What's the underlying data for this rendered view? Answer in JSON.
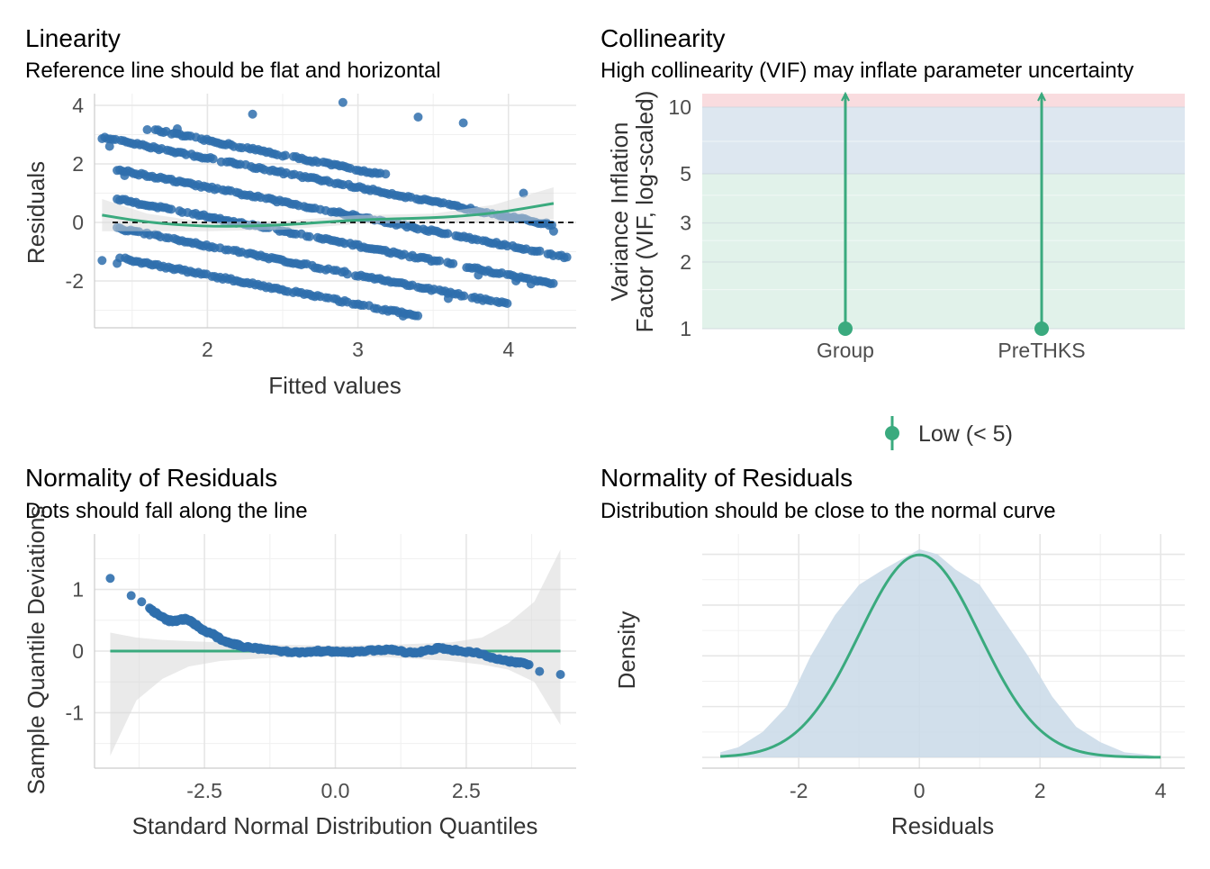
{
  "colors": {
    "point": "#2f6fad",
    "fit": "#3aaa7e",
    "ribbon": "#d9d9d9",
    "vif_low": "#e1f2ea",
    "vif_mod": "#dde7f0",
    "vif_high": "#f9dcdf",
    "density_fill": "#c9d9e8"
  },
  "chart_data": [
    {
      "id": "linearity",
      "type": "scatter",
      "title": "Linearity",
      "subtitle": "Reference line should be flat and horizontal",
      "xlabel": "Fitted values",
      "ylabel": "Residuals",
      "xlim": [
        1.25,
        4.45
      ],
      "ylim": [
        -3.6,
        4.4
      ],
      "xticks": [
        2,
        3,
        4
      ],
      "yticks": [
        -2,
        0,
        2,
        4
      ],
      "reference_line": 0,
      "band_offsets": [
        2.8,
        2.2,
        1.2,
        0.2,
        -0.8,
        -1.8
      ],
      "band_slope": -1.0,
      "band_xrange": [
        [
          1.6,
          3.2
        ],
        [
          1.3,
          4.3
        ],
        [
          1.4,
          4.4
        ],
        [
          1.4,
          4.3
        ],
        [
          1.4,
          4.0
        ],
        [
          1.4,
          3.4
        ]
      ],
      "outliers": [
        {
          "x": 1.35,
          "y": 2.6
        },
        {
          "x": 1.45,
          "y": 1.6
        },
        {
          "x": 1.3,
          "y": -1.3
        },
        {
          "x": 1.4,
          "y": -1.4
        },
        {
          "x": 1.8,
          "y": 3.2
        },
        {
          "x": 2.3,
          "y": 3.7
        },
        {
          "x": 2.9,
          "y": 4.1
        },
        {
          "x": 3.4,
          "y": 3.6
        },
        {
          "x": 3.7,
          "y": 3.4
        },
        {
          "x": 4.1,
          "y": 1.0
        },
        {
          "x": 4.3,
          "y": -0.3
        },
        {
          "x": 4.05,
          "y": -2.0
        },
        {
          "x": 4.15,
          "y": -2.1
        },
        {
          "x": 3.8,
          "y": -1.8
        },
        {
          "x": 3.6,
          "y": -2.6
        },
        {
          "x": 3.3,
          "y": -3.2
        }
      ],
      "smooth": {
        "x": [
          1.3,
          1.6,
          2.0,
          2.5,
          3.0,
          3.5,
          3.9,
          4.3
        ],
        "y": [
          0.25,
          0.0,
          -0.15,
          -0.1,
          0.1,
          0.15,
          0.3,
          0.65
        ]
      }
    },
    {
      "id": "collinearity",
      "type": "bar",
      "title": "Collinearity",
      "subtitle": "High collinearity (VIF) may inflate parameter uncertainty",
      "xlabel": "",
      "ylabel_lines": [
        "Variance Inflation",
        "Factor (VIF, log-scaled)"
      ],
      "categories": [
        "Group",
        "PreTHKS"
      ],
      "values": [
        1.0,
        1.0
      ],
      "ci_upper": [
        11.5,
        11.5
      ],
      "ylim": [
        1,
        11.5
      ],
      "yscale": "log",
      "yticks": [
        1,
        2,
        3,
        5,
        10
      ],
      "bands": [
        {
          "from": 1,
          "to": 5,
          "color_key": "vif_low"
        },
        {
          "from": 5,
          "to": 10,
          "color_key": "vif_mod"
        },
        {
          "from": 10,
          "to": 11.5,
          "color_key": "vif_high"
        }
      ],
      "legend": {
        "label": "Low (< 5)",
        "position": "bottom"
      }
    },
    {
      "id": "qq",
      "type": "scatter",
      "title": "Normality of Residuals",
      "subtitle": "Dots should fall along the line",
      "xlabel": "Standard Normal Distribution Quantiles",
      "ylabel": "Sample Quantile Deviations",
      "xlim": [
        -4.6,
        4.6
      ],
      "ylim": [
        -1.9,
        1.9
      ],
      "xticks": [
        -2.5,
        0.0,
        2.5
      ],
      "xtick_labels": [
        "-2.5",
        "0.0",
        "2.5"
      ],
      "yticks": [
        -1,
        0,
        1
      ],
      "reference_line": 0,
      "points": {
        "x": [
          -4.3,
          -3.9,
          -3.7,
          -3.55,
          -3.4,
          -3.3,
          -3.2,
          -3.1,
          -3.0,
          -2.9,
          -2.8,
          -2.7,
          -2.6,
          -2.5,
          -2.4,
          -2.3,
          -2.2,
          -2.1,
          -2.0,
          -1.9,
          -1.8,
          -1.6,
          -1.4,
          -1.2,
          -1.0,
          -0.8,
          -0.6,
          -0.4,
          -0.2,
          0.0,
          0.2,
          0.4,
          0.6,
          0.8,
          1.0,
          1.2,
          1.4,
          1.6,
          1.8,
          2.0,
          2.2,
          2.4,
          2.6,
          2.8,
          3.0,
          3.2,
          3.4,
          3.55,
          3.7,
          3.9,
          4.3
        ],
        "y": [
          1.18,
          0.9,
          0.8,
          0.7,
          0.6,
          0.55,
          0.5,
          0.48,
          0.5,
          0.52,
          0.5,
          0.45,
          0.38,
          0.32,
          0.3,
          0.25,
          0.2,
          0.15,
          0.12,
          0.1,
          0.08,
          0.05,
          0.03,
          0.02,
          0.0,
          -0.02,
          -0.02,
          0.0,
          0.0,
          -0.01,
          -0.02,
          -0.01,
          0.0,
          0.01,
          0.03,
          0.0,
          -0.02,
          -0.02,
          0.02,
          0.05,
          0.02,
          0.0,
          -0.02,
          -0.05,
          -0.1,
          -0.15,
          -0.18,
          -0.18,
          -0.22,
          -0.33,
          -0.38
        ]
      },
      "ribbon": {
        "x": [
          -4.3,
          -3.8,
          -3.3,
          -2.8,
          -2.2,
          -1.6,
          -1.0,
          0.0,
          1.0,
          1.6,
          2.2,
          2.8,
          3.3,
          3.8,
          4.3
        ],
        "upper": [
          0.3,
          0.22,
          0.18,
          0.16,
          0.14,
          0.12,
          0.1,
          0.09,
          0.1,
          0.12,
          0.14,
          0.22,
          0.45,
          0.8,
          1.65
        ],
        "lower": [
          -1.7,
          -0.8,
          -0.45,
          -0.25,
          -0.16,
          -0.13,
          -0.1,
          -0.09,
          -0.1,
          -0.13,
          -0.16,
          -0.22,
          -0.3,
          -0.5,
          -1.2
        ]
      }
    },
    {
      "id": "density",
      "type": "area",
      "title": "Normality of Residuals",
      "subtitle": "Distribution should be close to the normal curve",
      "xlabel": "Residuals",
      "ylabel": "Density",
      "xlim": [
        -3.6,
        4.4
      ],
      "xticks": [
        -2,
        0,
        2,
        4
      ],
      "empirical": {
        "x": [
          -3.3,
          -3.0,
          -2.6,
          -2.2,
          -1.8,
          -1.4,
          -1.0,
          -0.6,
          -0.3,
          0.0,
          0.3,
          0.6,
          1.0,
          1.4,
          1.8,
          2.2,
          2.6,
          3.0,
          3.4,
          3.8,
          4.0
        ],
        "y": [
          0.01,
          0.02,
          0.05,
          0.1,
          0.2,
          0.28,
          0.34,
          0.37,
          0.39,
          0.41,
          0.4,
          0.37,
          0.34,
          0.27,
          0.2,
          0.12,
          0.06,
          0.03,
          0.01,
          0.005,
          0.0
        ]
      },
      "normal_curve": {
        "mean": 0.0,
        "sd": 1.0,
        "xrange": [
          -3.3,
          4.0
        ]
      }
    }
  ]
}
